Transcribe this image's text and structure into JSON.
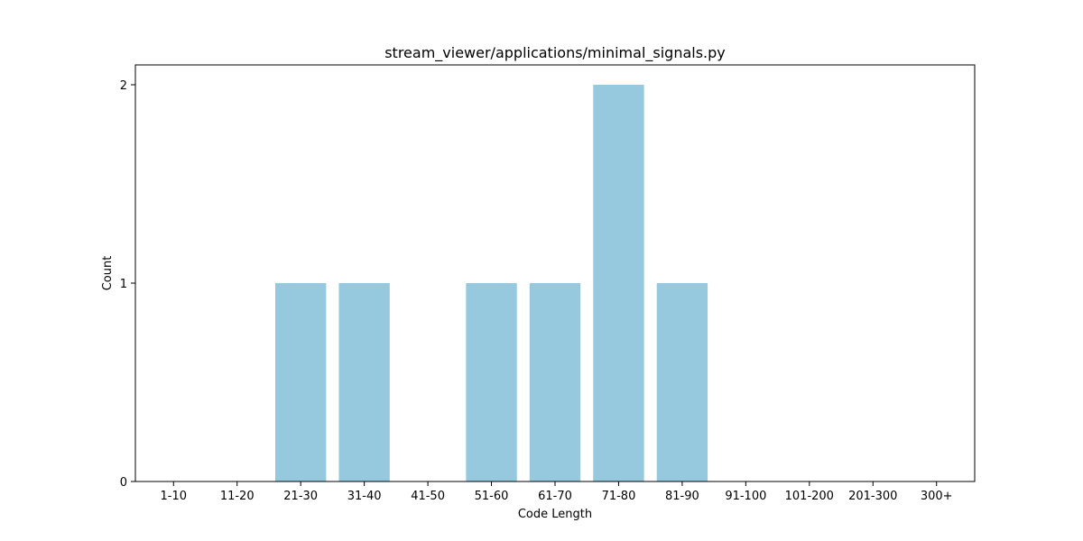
{
  "chart_data": {
    "type": "bar",
    "title": "stream_viewer/applications/minimal_signals.py",
    "xlabel": "Code Length",
    "ylabel": "Count",
    "categories": [
      "1-10",
      "11-20",
      "21-30",
      "31-40",
      "41-50",
      "51-60",
      "61-70",
      "71-80",
      "81-90",
      "91-100",
      "101-200",
      "201-300",
      "300+"
    ],
    "values": [
      0,
      0,
      1,
      1,
      0,
      1,
      1,
      2,
      1,
      0,
      0,
      0,
      0
    ],
    "ylim": [
      0,
      2.1
    ],
    "yticks": [
      0,
      1,
      2
    ],
    "bar_color": "#96c9de",
    "grid": false,
    "legend": "none"
  }
}
